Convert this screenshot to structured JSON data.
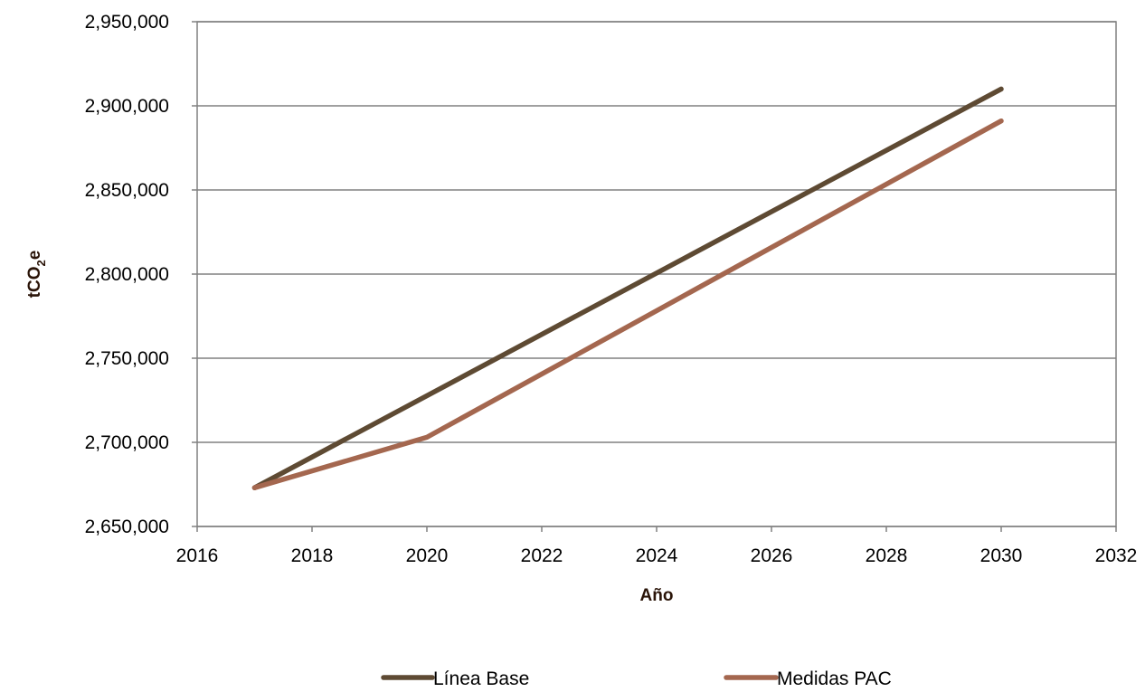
{
  "chart_data": {
    "type": "line",
    "title": "",
    "xlabel": "Año",
    "ylabel_main": "tCO",
    "ylabel_sub": "2",
    "ylabel_tail": "e",
    "xlim": [
      2016,
      2032
    ],
    "ylim": [
      2650000,
      2950000
    ],
    "x_ticks": [
      2016,
      2018,
      2020,
      2022,
      2024,
      2026,
      2028,
      2030,
      2032
    ],
    "y_ticks": [
      2650000,
      2700000,
      2750000,
      2800000,
      2850000,
      2900000,
      2950000
    ],
    "x_tick_labels": [
      "2016",
      "2018",
      "2020",
      "2022",
      "2024",
      "2026",
      "2028",
      "2030",
      "2032"
    ],
    "y_tick_labels": [
      "2,650,000",
      "2,700,000",
      "2,750,000",
      "2,800,000",
      "2,850,000",
      "2,900,000",
      "2,950,000"
    ],
    "grid": "horizontal",
    "legend_position": "bottom",
    "series": [
      {
        "name": "Línea Base",
        "color": "#5e4a33",
        "x": [
          2017,
          2030
        ],
        "y": [
          2673000,
          2910000
        ]
      },
      {
        "name": "Medidas PAC",
        "color": "#a4674f",
        "x": [
          2017,
          2020,
          2030
        ],
        "y": [
          2673000,
          2703000,
          2891000
        ]
      }
    ]
  }
}
